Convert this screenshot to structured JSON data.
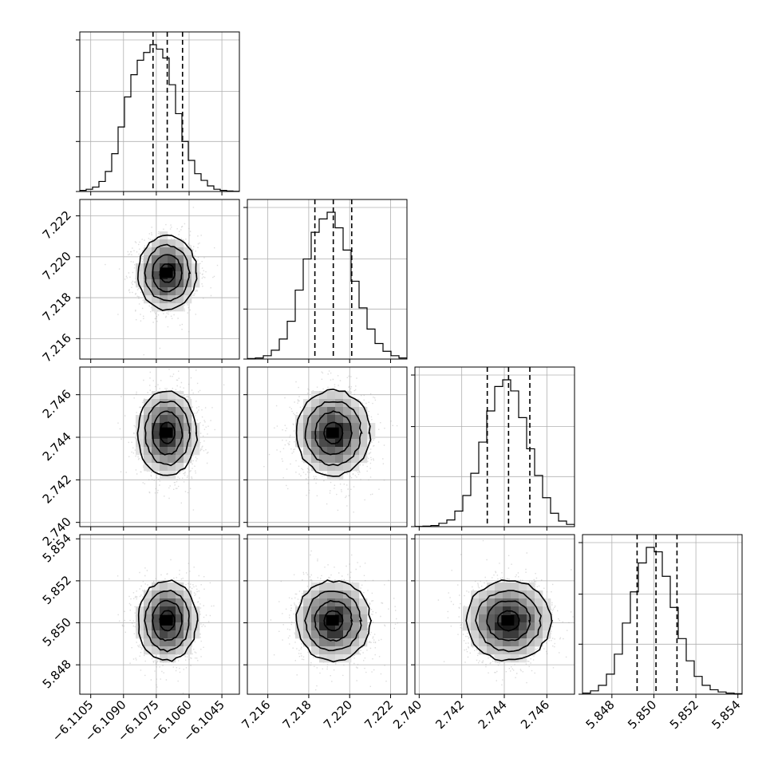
{
  "chart_data": {
    "type": "corner",
    "parameters": [
      {
        "axis_range": [
          -6.111,
          -6.1037
        ],
        "ticks": [
          -6.1105,
          -6.109,
          -6.1075,
          -6.106,
          -6.1045
        ],
        "tick_labels": [
          "−6.1105",
          "−6.1090",
          "−6.1075",
          "−6.1060",
          "−6.1045"
        ],
        "mean": -6.107,
        "quantiles": [
          -6.10765,
          -6.107,
          -6.1063
        ],
        "hist": [
          1,
          2,
          4,
          9,
          18,
          34,
          58,
          85,
          105,
          118,
          125,
          132,
          128,
          120,
          96,
          70,
          45,
          28,
          16,
          10,
          5,
          2,
          1,
          0.5,
          0.2
        ]
      },
      {
        "axis_range": [
          7.215,
          7.2228
        ],
        "ticks": [
          7.216,
          7.218,
          7.22,
          7.222
        ],
        "tick_labels": [
          "7.216",
          "7.218",
          "7.220",
          "7.222"
        ],
        "mean": 7.2192,
        "quantiles": [
          7.2183,
          7.2192,
          7.2201
        ],
        "hist": [
          0.5,
          1,
          3,
          8,
          18,
          34,
          62,
          90,
          114,
          126,
          132,
          118,
          98,
          70,
          46,
          27,
          14,
          7,
          3,
          1
        ]
      },
      {
        "axis_range": [
          2.7398,
          2.7473
        ],
        "ticks": [
          2.74,
          2.742,
          2.744,
          2.746
        ],
        "tick_labels": [
          "2.740",
          "2.742",
          "2.744",
          "2.746"
        ],
        "mean": 2.7442,
        "quantiles": [
          2.7432,
          2.7442,
          2.7452
        ],
        "hist": [
          0.2,
          0.5,
          1,
          3,
          6,
          14,
          28,
          48,
          76,
          104,
          126,
          132,
          122,
          98,
          70,
          46,
          26,
          12,
          5,
          2
        ]
      },
      {
        "axis_range": [
          5.8466,
          5.8542
        ],
        "ticks": [
          5.848,
          5.85,
          5.852,
          5.854
        ],
        "tick_labels": [
          "5.848",
          "5.850",
          "5.852",
          "5.854"
        ],
        "mean": 5.8501,
        "quantiles": [
          5.8492,
          5.8501,
          5.8511
        ],
        "hist": [
          1,
          3,
          8,
          18,
          36,
          64,
          92,
          118,
          132,
          128,
          106,
          78,
          50,
          30,
          16,
          8,
          4,
          2,
          1,
          0.5
        ]
      }
    ],
    "hist_yticks": [
      0.33,
      0.66,
      1.0
    ],
    "contour_levels_sigma": [
      0.5,
      1.0,
      1.5,
      2.0
    ],
    "grid": true,
    "scatter_color": "#000000",
    "line_color": "#000000",
    "grid_color": "#b0b0b0"
  }
}
